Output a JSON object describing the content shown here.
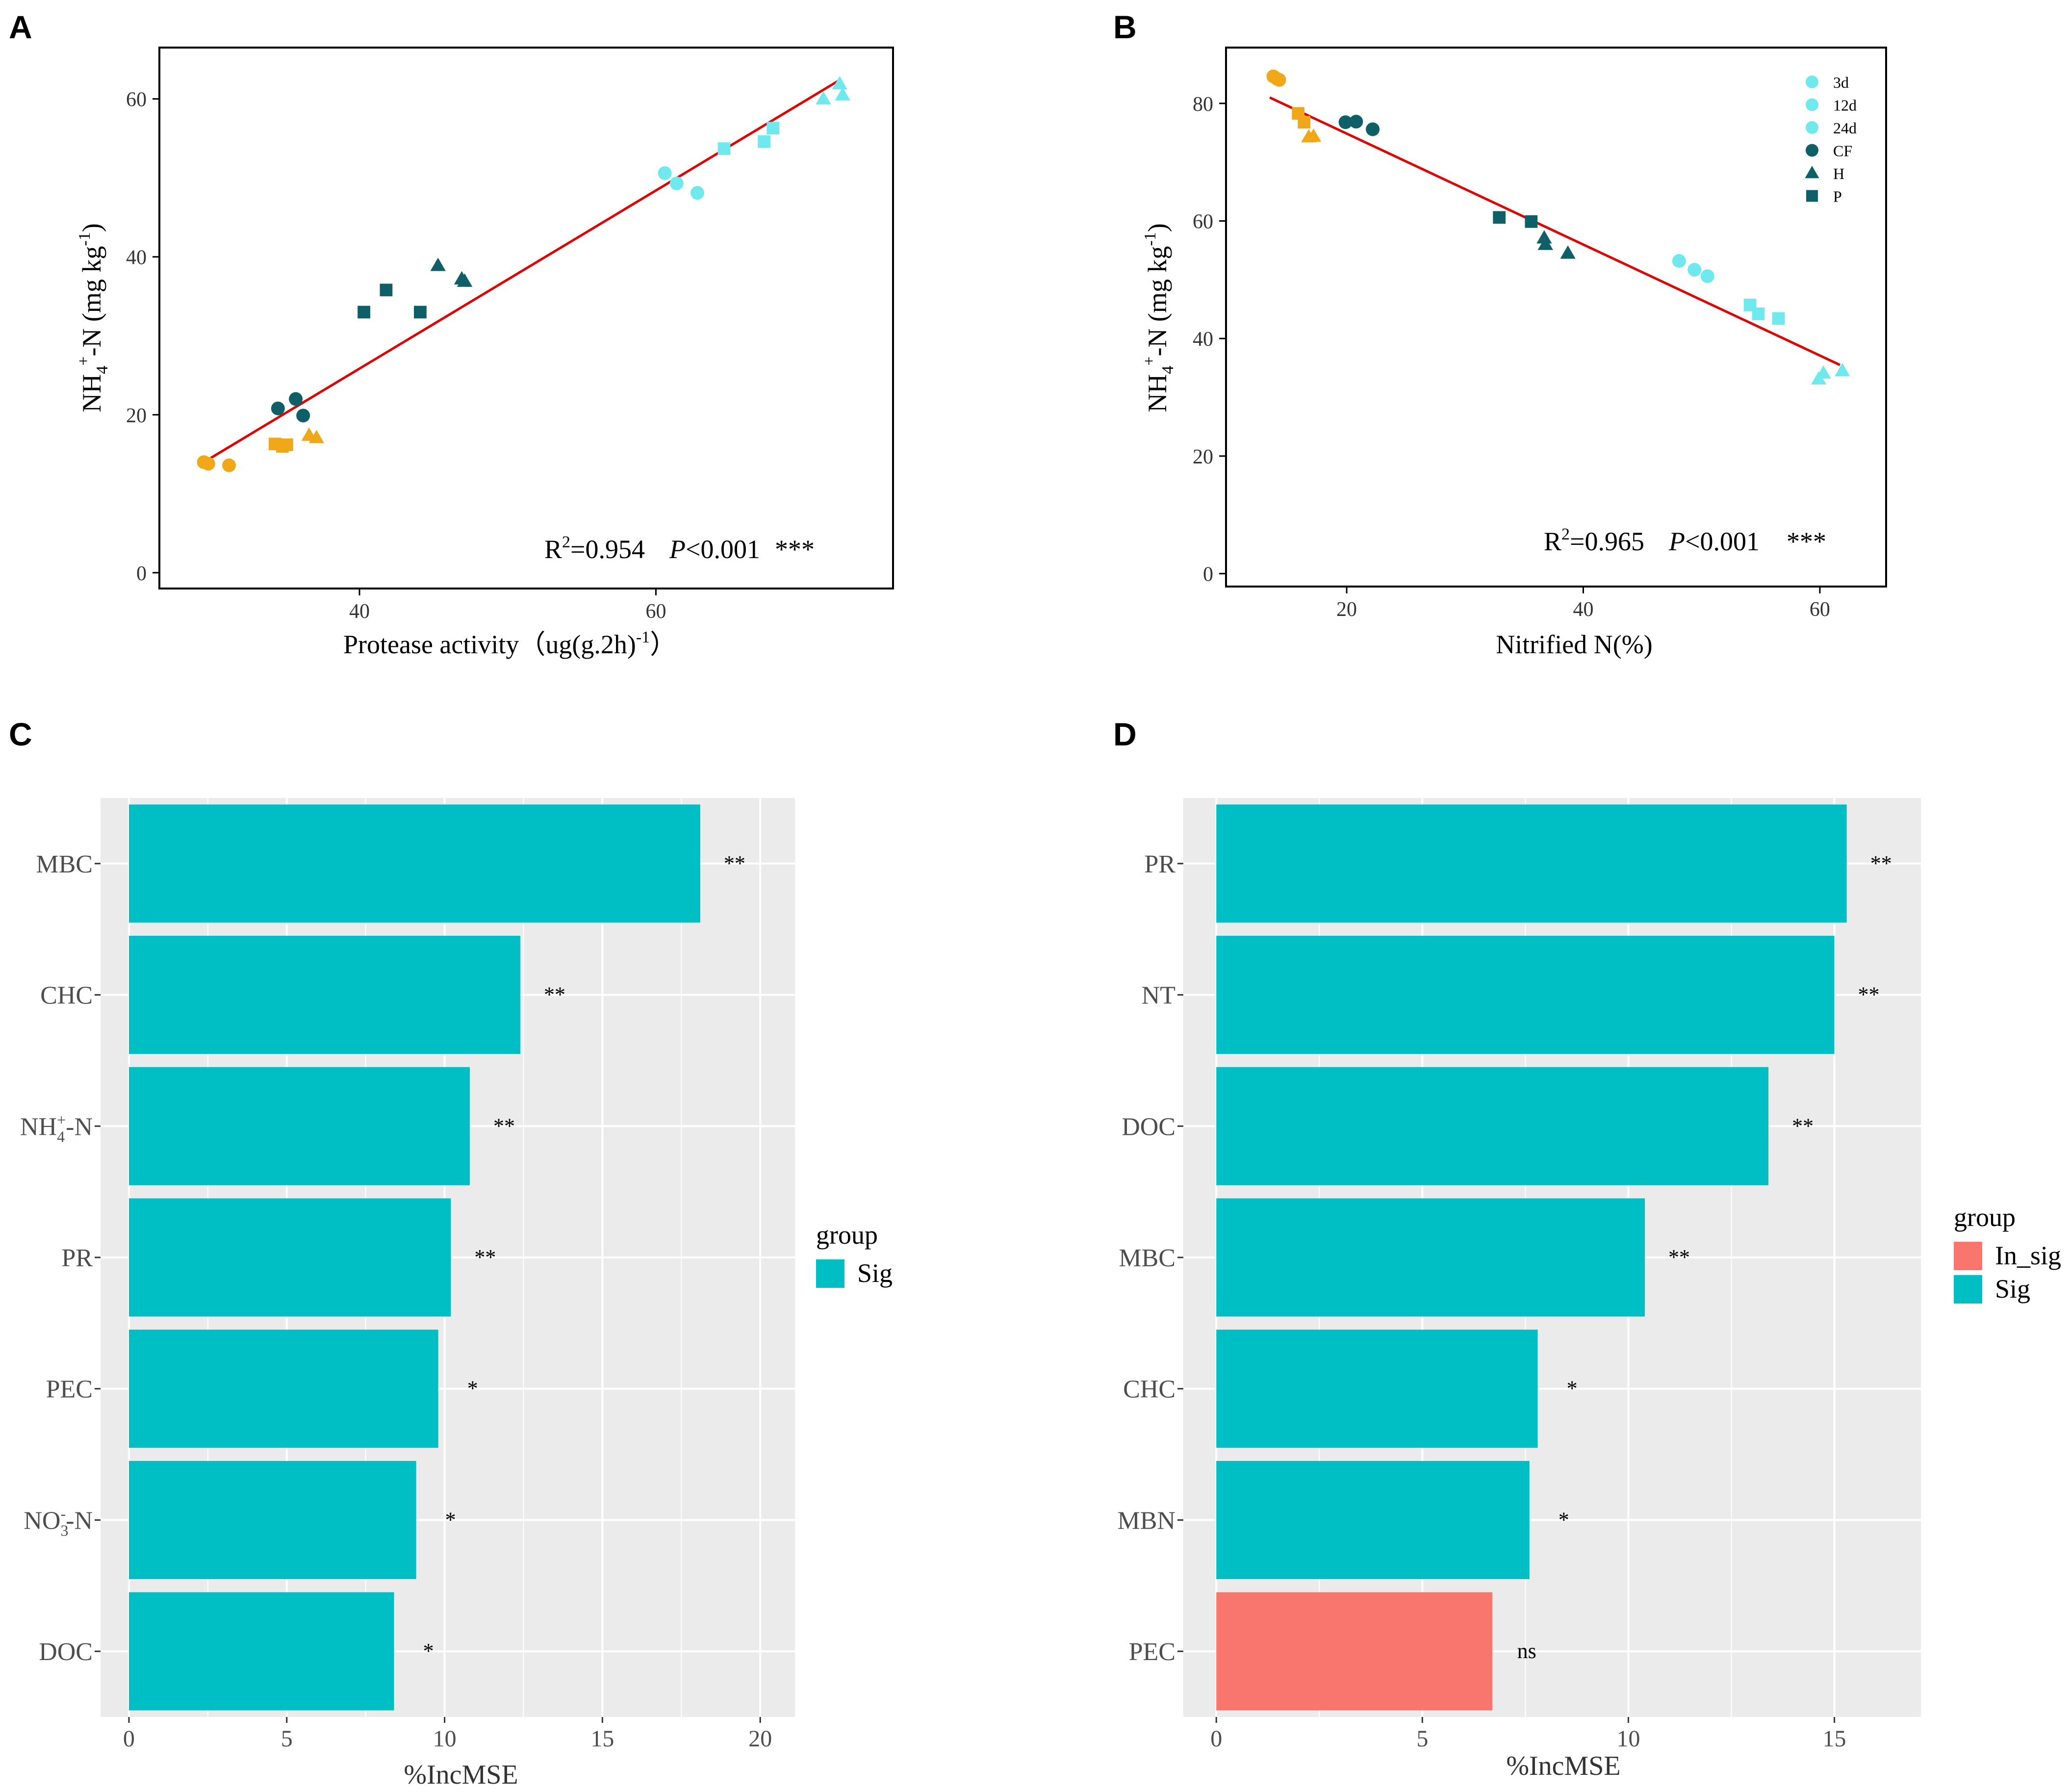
{
  "figure": {
    "colors": {
      "early": "#F0A818",
      "mid": "#0E5F68",
      "late": "#6FE8EE",
      "fit": "#E00000",
      "sig": "#00BFC4",
      "in_sig": "#F8766D",
      "panel_bg": "#EBEBEB",
      "grid": "#FFFFFF"
    }
  },
  "chart_data": [
    {
      "panel": "A",
      "type": "scatter",
      "xlabel_parts": [
        "Protease activity（ug(g.2h)",
        "-1",
        "）"
      ],
      "ylabel_parts": [
        "NH",
        "4",
        "+",
        "-N (mg kg",
        "-1",
        ")"
      ],
      "xlim": [
        26.5,
        76
      ],
      "ylim": [
        -2,
        66.5
      ],
      "xticks": [
        "40",
        "60"
      ],
      "yticks": [
        "0",
        "20",
        "40",
        "60"
      ],
      "fit": {
        "x1": 29.5,
        "y1": 14.0,
        "x2": 72.5,
        "y2": 62.5
      },
      "stat_parts": [
        "R",
        "2",
        "=0.954",
        "P",
        "<0.001",
        "***"
      ],
      "points": [
        {
          "x": 29.5,
          "y": 14.0,
          "shape": "circle",
          "group": "early"
        },
        {
          "x": 29.8,
          "y": 13.8,
          "shape": "circle",
          "group": "early"
        },
        {
          "x": 31.2,
          "y": 13.6,
          "shape": "circle",
          "group": "early"
        },
        {
          "x": 34.3,
          "y": 16.3,
          "shape": "square",
          "group": "early"
        },
        {
          "x": 34.8,
          "y": 16.0,
          "shape": "square",
          "group": "early"
        },
        {
          "x": 35.1,
          "y": 16.2,
          "shape": "square",
          "group": "early"
        },
        {
          "x": 36.6,
          "y": 17.4,
          "shape": "triangle",
          "group": "early"
        },
        {
          "x": 37.1,
          "y": 17.1,
          "shape": "triangle",
          "group": "early"
        },
        {
          "x": 34.5,
          "y": 20.8,
          "shape": "circle",
          "group": "mid"
        },
        {
          "x": 35.7,
          "y": 22.0,
          "shape": "circle",
          "group": "mid"
        },
        {
          "x": 36.2,
          "y": 19.9,
          "shape": "circle",
          "group": "mid"
        },
        {
          "x": 40.3,
          "y": 33.0,
          "shape": "square",
          "group": "mid"
        },
        {
          "x": 41.8,
          "y": 35.8,
          "shape": "square",
          "group": "mid"
        },
        {
          "x": 44.1,
          "y": 33.0,
          "shape": "square",
          "group": "mid"
        },
        {
          "x": 45.3,
          "y": 38.9,
          "shape": "triangle",
          "group": "mid"
        },
        {
          "x": 46.9,
          "y": 37.2,
          "shape": "triangle",
          "group": "mid"
        },
        {
          "x": 47.1,
          "y": 36.9,
          "shape": "triangle",
          "group": "mid"
        },
        {
          "x": 60.6,
          "y": 50.6,
          "shape": "circle",
          "group": "late"
        },
        {
          "x": 61.4,
          "y": 49.3,
          "shape": "circle",
          "group": "late"
        },
        {
          "x": 62.8,
          "y": 48.1,
          "shape": "circle",
          "group": "late"
        },
        {
          "x": 64.6,
          "y": 53.7,
          "shape": "square",
          "group": "late"
        },
        {
          "x": 67.3,
          "y": 54.6,
          "shape": "square",
          "group": "late"
        },
        {
          "x": 67.9,
          "y": 56.3,
          "shape": "square",
          "group": "late"
        },
        {
          "x": 71.3,
          "y": 60.0,
          "shape": "triangle",
          "group": "late"
        },
        {
          "x": 72.4,
          "y": 61.9,
          "shape": "triangle",
          "group": "late"
        },
        {
          "x": 72.6,
          "y": 60.5,
          "shape": "triangle",
          "group": "late"
        }
      ]
    },
    {
      "panel": "B",
      "type": "scatter",
      "xlabel_parts": [
        "Nitrified N(%)"
      ],
      "ylabel_parts": [
        "NH",
        "4",
        "+",
        "-N (mg kg",
        "-1",
        ")"
      ],
      "xlim": [
        9.8,
        65.6
      ],
      "ylim": [
        -2.2,
        89.5
      ],
      "xticks": [
        "20",
        "40",
        "60"
      ],
      "yticks": [
        "0",
        "20",
        "40",
        "60",
        "80"
      ],
      "fit": {
        "x1": 13.5,
        "y1": 81.0,
        "x2": 61.7,
        "y2": 35.5
      },
      "stat_parts": [
        "R",
        "2",
        "=0.965",
        "P",
        "<0.001",
        "***"
      ],
      "legend": [
        "3d",
        "12d",
        "24d",
        "CF",
        "H",
        "P"
      ],
      "points": [
        {
          "x": 13.8,
          "y": 84.6,
          "shape": "circle",
          "group": "early"
        },
        {
          "x": 14.1,
          "y": 84.2,
          "shape": "circle",
          "group": "early"
        },
        {
          "x": 14.3,
          "y": 84.0,
          "shape": "circle",
          "group": "early"
        },
        {
          "x": 15.9,
          "y": 78.3,
          "shape": "square",
          "group": "early"
        },
        {
          "x": 16.4,
          "y": 76.8,
          "shape": "square",
          "group": "early"
        },
        {
          "x": 16.8,
          "y": 74.3,
          "shape": "triangle",
          "group": "early"
        },
        {
          "x": 17.2,
          "y": 74.4,
          "shape": "triangle",
          "group": "early"
        },
        {
          "x": 19.9,
          "y": 76.8,
          "shape": "circle",
          "group": "mid"
        },
        {
          "x": 20.8,
          "y": 76.9,
          "shape": "circle",
          "group": "mid"
        },
        {
          "x": 22.2,
          "y": 75.6,
          "shape": "circle",
          "group": "mid"
        },
        {
          "x": 32.9,
          "y": 60.6,
          "shape": "square",
          "group": "mid"
        },
        {
          "x": 35.6,
          "y": 59.9,
          "shape": "square",
          "group": "mid"
        },
        {
          "x": 36.7,
          "y": 57.1,
          "shape": "triangle",
          "group": "mid"
        },
        {
          "x": 36.8,
          "y": 56.0,
          "shape": "triangle",
          "group": "mid"
        },
        {
          "x": 38.7,
          "y": 54.5,
          "shape": "triangle",
          "group": "mid"
        },
        {
          "x": 48.1,
          "y": 53.2,
          "shape": "circle",
          "group": "late"
        },
        {
          "x": 49.4,
          "y": 51.7,
          "shape": "circle",
          "group": "late"
        },
        {
          "x": 50.5,
          "y": 50.6,
          "shape": "circle",
          "group": "late"
        },
        {
          "x": 54.1,
          "y": 45.7,
          "shape": "square",
          "group": "late"
        },
        {
          "x": 54.8,
          "y": 44.2,
          "shape": "square",
          "group": "late"
        },
        {
          "x": 56.5,
          "y": 43.4,
          "shape": "square",
          "group": "late"
        },
        {
          "x": 59.9,
          "y": 33.1,
          "shape": "triangle",
          "group": "late"
        },
        {
          "x": 60.3,
          "y": 34.1,
          "shape": "triangle",
          "group": "late"
        },
        {
          "x": 61.9,
          "y": 34.5,
          "shape": "triangle",
          "group": "late"
        }
      ]
    },
    {
      "panel": "C",
      "type": "bar",
      "orientation": "horizontal",
      "xlabel": "%IncMSE",
      "xlim": [
        -0.9,
        21.1
      ],
      "xticks": [
        "0",
        "5",
        "10",
        "15",
        "20"
      ],
      "legend_title": "group",
      "legend": [
        {
          "label": "Sig",
          "group": "Sig"
        }
      ],
      "bars": [
        {
          "label": "MBC",
          "value": 18.1,
          "sig": "**",
          "group": "Sig"
        },
        {
          "label": "CHC",
          "value": 12.4,
          "sig": "**",
          "group": "Sig"
        },
        {
          "label_parts": [
            "NH",
            "4",
            "+",
            "-N"
          ],
          "value": 10.8,
          "sig": "**",
          "group": "Sig"
        },
        {
          "label": "PR",
          "value": 10.2,
          "sig": "**",
          "group": "Sig"
        },
        {
          "label": "PEC",
          "value": 9.8,
          "sig": "*",
          "group": "Sig"
        },
        {
          "label_parts": [
            "NO",
            "3",
            "-",
            "-N"
          ],
          "value": 9.1,
          "sig": "*",
          "group": "Sig"
        },
        {
          "label": "DOC",
          "value": 8.4,
          "sig": "*",
          "group": "Sig"
        }
      ]
    },
    {
      "panel": "D",
      "type": "bar",
      "orientation": "horizontal",
      "xlabel": "%IncMSE",
      "xlim": [
        -0.8,
        17.1
      ],
      "xticks": [
        "0",
        "5",
        "10",
        "15"
      ],
      "legend_title": "group",
      "legend": [
        {
          "label": "In_sig",
          "group": "In_sig"
        },
        {
          "label": "Sig",
          "group": "Sig"
        }
      ],
      "bars": [
        {
          "label": "PR",
          "value": 15.3,
          "sig": "**",
          "group": "Sig"
        },
        {
          "label": "NT",
          "value": 15.0,
          "sig": "**",
          "group": "Sig"
        },
        {
          "label": "DOC",
          "value": 13.4,
          "sig": "**",
          "group": "Sig"
        },
        {
          "label": "MBC",
          "value": 10.4,
          "sig": "**",
          "group": "Sig"
        },
        {
          "label": "CHC",
          "value": 7.8,
          "sig": "*",
          "group": "Sig"
        },
        {
          "label": "MBN",
          "value": 7.6,
          "sig": "*",
          "group": "Sig"
        },
        {
          "label": "PEC",
          "value": 6.7,
          "sig": "ns",
          "group": "In_sig"
        }
      ]
    }
  ]
}
